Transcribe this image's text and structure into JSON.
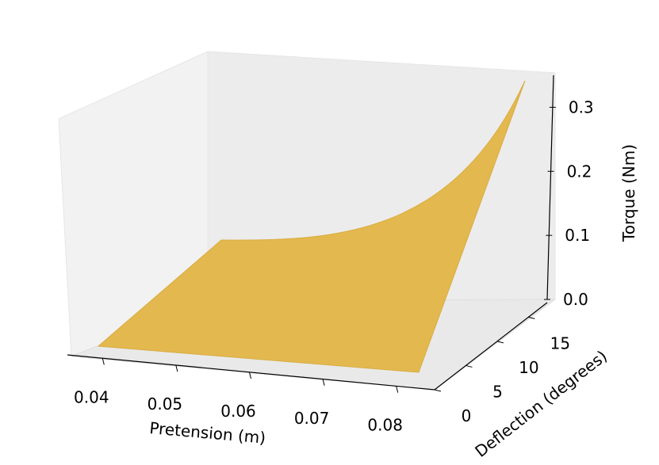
{
  "chart_data": {
    "type": "surface",
    "xlabel": "Pretension (m)",
    "ylabel": "Deflection (degrees)",
    "zlabel": "Torque (Nm)",
    "x_ticks": [
      "0.04",
      "0.05",
      "0.06",
      "0.07",
      "0.08"
    ],
    "y_ticks": [
      "0",
      "5",
      "10",
      "15"
    ],
    "z_ticks": [
      "0.0",
      "0.1",
      "0.2",
      "0.3"
    ],
    "xlim": [
      0.035,
      0.085
    ],
    "ylim": [
      0,
      18
    ],
    "zlim": [
      0,
      0.35
    ],
    "surface": {
      "description_points": [
        {
          "x": 0.035,
          "y": 0,
          "z": 0.0
        },
        {
          "x": 0.085,
          "y": 0,
          "z": 0.0
        },
        {
          "x": 0.035,
          "y": 18,
          "z": 0.0
        },
        {
          "x": 0.085,
          "y": 18,
          "z": 0.34
        }
      ],
      "color": "#e3b84f"
    },
    "grid": false
  }
}
